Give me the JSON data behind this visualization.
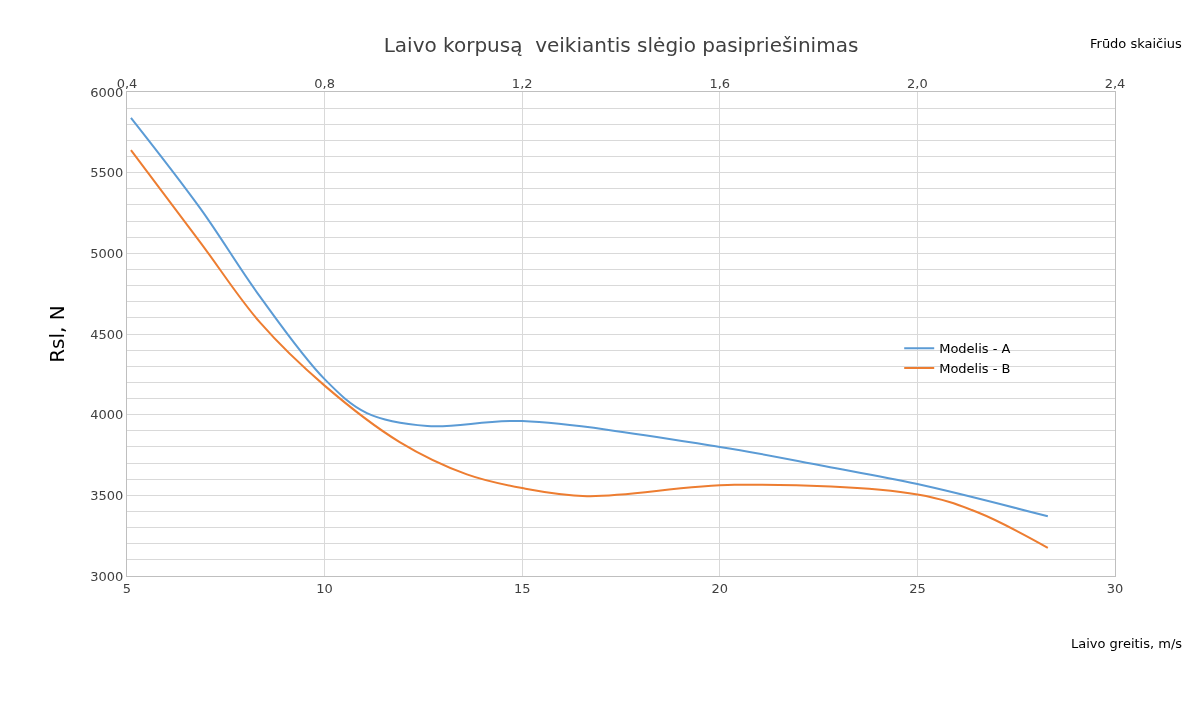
{
  "chart_data": {
    "type": "line",
    "title": "Laivo korpusą  veikiantis slėgio pasipriešinimas",
    "xlabel": "Laivo greitis, m/s",
    "x2label": "Frūdo skaičius",
    "ylabel": "Rsl, N",
    "xlim": [
      5,
      30
    ],
    "xticks": [
      5,
      10,
      15,
      20,
      25,
      30
    ],
    "x2lim": [
      0.4,
      2.4
    ],
    "x2ticks": [
      {
        "value": 0.4,
        "label": "0,4"
      },
      {
        "value": 0.8,
        "label": "0,8"
      },
      {
        "value": 1.2,
        "label": "1,2"
      },
      {
        "value": 1.6,
        "label": "1,6"
      },
      {
        "value": 2.0,
        "label": "2,0"
      },
      {
        "value": 2.4,
        "label": "2,4"
      }
    ],
    "ylim": [
      3000,
      6000
    ],
    "yticks": [
      3000,
      {
        "value": 3100,
        "label": null
      },
      {
        "value": 3200,
        "label": null
      },
      {
        "value": 3300,
        "label": null
      },
      {
        "value": 3400,
        "label": null
      },
      3500,
      {
        "value": 3600,
        "label": null
      },
      {
        "value": 3700,
        "label": null
      },
      {
        "value": 3800,
        "label": null
      },
      {
        "value": 3900,
        "label": null
      },
      4000,
      {
        "value": 4100,
        "label": null
      },
      {
        "value": 4200,
        "label": null
      },
      {
        "value": 4300,
        "label": null
      },
      {
        "value": 4400,
        "label": null
      },
      4500,
      {
        "value": 4600,
        "label": null
      },
      {
        "value": 4700,
        "label": null
      },
      {
        "value": 4800,
        "label": null
      },
      {
        "value": 4900,
        "label": null
      },
      5000,
      {
        "value": 5100,
        "label": null
      },
      {
        "value": 5200,
        "label": null
      },
      {
        "value": 5300,
        "label": null
      },
      {
        "value": 5400,
        "label": null
      },
      5500,
      {
        "value": 5600,
        "label": null
      },
      {
        "value": 5700,
        "label": null
      },
      {
        "value": 5800,
        "label": null
      },
      {
        "value": 5900,
        "label": null
      },
      6000
    ],
    "grid": true,
    "legend": "right",
    "marker": "none",
    "line_style": "solid",
    "series": [
      {
        "name": "Modelis - A",
        "color": "#5b9bd5",
        "x": [
          5.1,
          6.85,
          8.37,
          10,
          11.07,
          12.6,
          15,
          20,
          22.67,
          25,
          28.3
        ],
        "values": [
          5840,
          5280,
          4730,
          4220,
          4010,
          3930,
          3960,
          3800,
          3680,
          3570,
          3370
        ]
      },
      {
        "name": "Modelis - B",
        "color": "#ed7d31",
        "x": [
          5.1,
          6.85,
          8.37,
          10,
          11.9,
          13.6,
          15,
          16.64,
          20.37,
          25,
          26.52,
          28.3
        ],
        "values": [
          5640,
          5070,
          4570,
          4180,
          3830,
          3630,
          3545,
          3495,
          3565,
          3505,
          3395,
          3175
        ]
      }
    ]
  }
}
